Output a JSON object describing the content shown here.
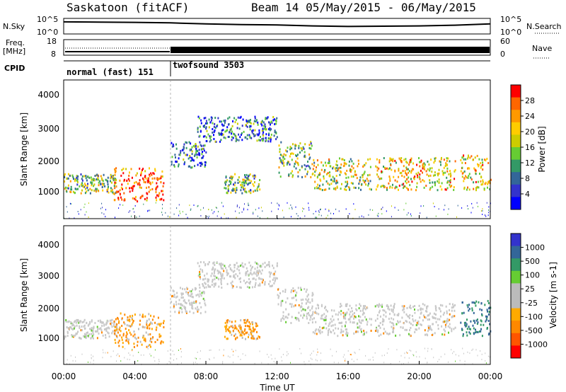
{
  "header": {
    "title": "Saskatoon (fitACF)",
    "beam_info": "Beam 14 05/May/2015 - 06/May/2015"
  },
  "noise_panel": {
    "left_label": "N.Sky",
    "left_ticks": [
      "10^5",
      "10^0"
    ],
    "right_label": "N.Search",
    "right_ticks": [
      "10^5",
      "10^0"
    ]
  },
  "freq_panel": {
    "left_label_line1": "Freq.",
    "left_label_line2": "[MHz]",
    "left_ticks": [
      "18",
      "8"
    ],
    "right_label": "Nave",
    "right_ticks": [
      "60",
      "0"
    ]
  },
  "cpid_panel": {
    "label": "CPID",
    "modes": [
      {
        "name": "normal (fast) 151",
        "start_hour": 0,
        "end_hour": 6
      },
      {
        "name": "twofsound 3503",
        "start_hour": 6,
        "end_hour": 24
      }
    ]
  },
  "power_panel": {
    "ylabel": "Slant Range [km]",
    "yticks": [
      "4000",
      "3000",
      "2000",
      "1000"
    ],
    "colorbar_label": "Power [dB]",
    "colorbar_ticks": [
      "28",
      "24",
      "20",
      "16",
      "12",
      "8",
      "4"
    ],
    "colors": [
      "#ff0000",
      "#ff6600",
      "#ff9900",
      "#ffcc00",
      "#cccc00",
      "#66cc33",
      "#339966",
      "#336699",
      "#3333cc",
      "#0000ff"
    ]
  },
  "velocity_panel": {
    "ylabel": "Slant Range [km]",
    "yticks": [
      "4000",
      "3000",
      "2000",
      "1000"
    ],
    "colorbar_label": "Velocity [m s-1]",
    "colorbar_ticks": [
      "1000",
      "500",
      "100",
      "25",
      "-25",
      "-100",
      "-500",
      "-1000"
    ],
    "colors": [
      "#3333cc",
      "#336699",
      "#339966",
      "#66cc33",
      "#bbbbbb",
      "#bbbbbb",
      "#ffaa00",
      "#ff8800",
      "#ff5500",
      "#ff0000"
    ]
  },
  "xaxis": {
    "label": "Time UT",
    "ticks": [
      "00:00",
      "04:00",
      "08:00",
      "12:00",
      "16:00",
      "20:00",
      "00:00"
    ]
  },
  "chart_data": {
    "type": "heatmap",
    "title": "Saskatoon (fitACF)",
    "subtitle": "Beam 14 05/May/2015 - 06/May/2015",
    "xlabel": "Time UT",
    "ylabel": "Slant Range [km]",
    "xlim_hours": [
      0,
      24
    ],
    "ylim_km": [
      180,
      4500
    ],
    "power_colorbar_db": [
      4,
      8,
      12,
      16,
      20,
      24,
      28
    ],
    "velocity_colorbar_ms": [
      -1000,
      -500,
      -100,
      -25,
      25,
      100,
      500,
      1000
    ],
    "scatter_bands": [
      {
        "start_hour": 0.0,
        "end_hour": 3.0,
        "range_low_km": 1000,
        "range_high_km": 1600,
        "power_db": 14,
        "velocity_ms": 0
      },
      {
        "start_hour": 2.8,
        "end_hour": 5.6,
        "range_low_km": 750,
        "range_high_km": 1800,
        "power_db": 26,
        "velocity_ms": -200
      },
      {
        "start_hour": 6.0,
        "end_hour": 8.0,
        "range_low_km": 1800,
        "range_high_km": 2600,
        "power_db": 8,
        "velocity_ms": 0
      },
      {
        "start_hour": 7.5,
        "end_hour": 12.0,
        "range_low_km": 2600,
        "range_high_km": 3400,
        "power_db": 6,
        "velocity_ms": 0
      },
      {
        "start_hour": 9.0,
        "end_hour": 11.0,
        "range_low_km": 1000,
        "range_high_km": 1600,
        "power_db": 14,
        "velocity_ms": -150
      },
      {
        "start_hour": 12.0,
        "end_hour": 14.0,
        "range_low_km": 1500,
        "range_high_km": 2600,
        "power_db": 14,
        "velocity_ms": 0
      },
      {
        "start_hour": 14.0,
        "end_hour": 17.3,
        "range_low_km": 1100,
        "range_high_km": 2100,
        "power_db": 15,
        "velocity_ms": 0
      },
      {
        "start_hour": 17.5,
        "end_hour": 22.0,
        "range_low_km": 1100,
        "range_high_km": 2100,
        "power_db": 18,
        "velocity_ms": 0
      },
      {
        "start_hour": 22.3,
        "end_hour": 24.0,
        "range_low_km": 1100,
        "range_high_km": 2200,
        "power_db": 20,
        "velocity_ms": 500
      }
    ],
    "noise_sky": {
      "hours": [
        0,
        2,
        4,
        6,
        8,
        10,
        12,
        14,
        16,
        18,
        20,
        22,
        24
      ],
      "log10_values": [
        4.2,
        4.1,
        4.0,
        3.8,
        3.4,
        3.1,
        3.0,
        2.6,
        2.4,
        2.5,
        2.6,
        2.9,
        3.4
      ]
    },
    "frequency_mhz": {
      "hours": [
        0,
        6,
        24
      ],
      "values": [
        10.4,
        10.5,
        10.5
      ]
    },
    "nave": {
      "hours": [
        0,
        6,
        6.01,
        24
      ],
      "values": [
        18,
        18,
        50,
        50
      ]
    }
  }
}
